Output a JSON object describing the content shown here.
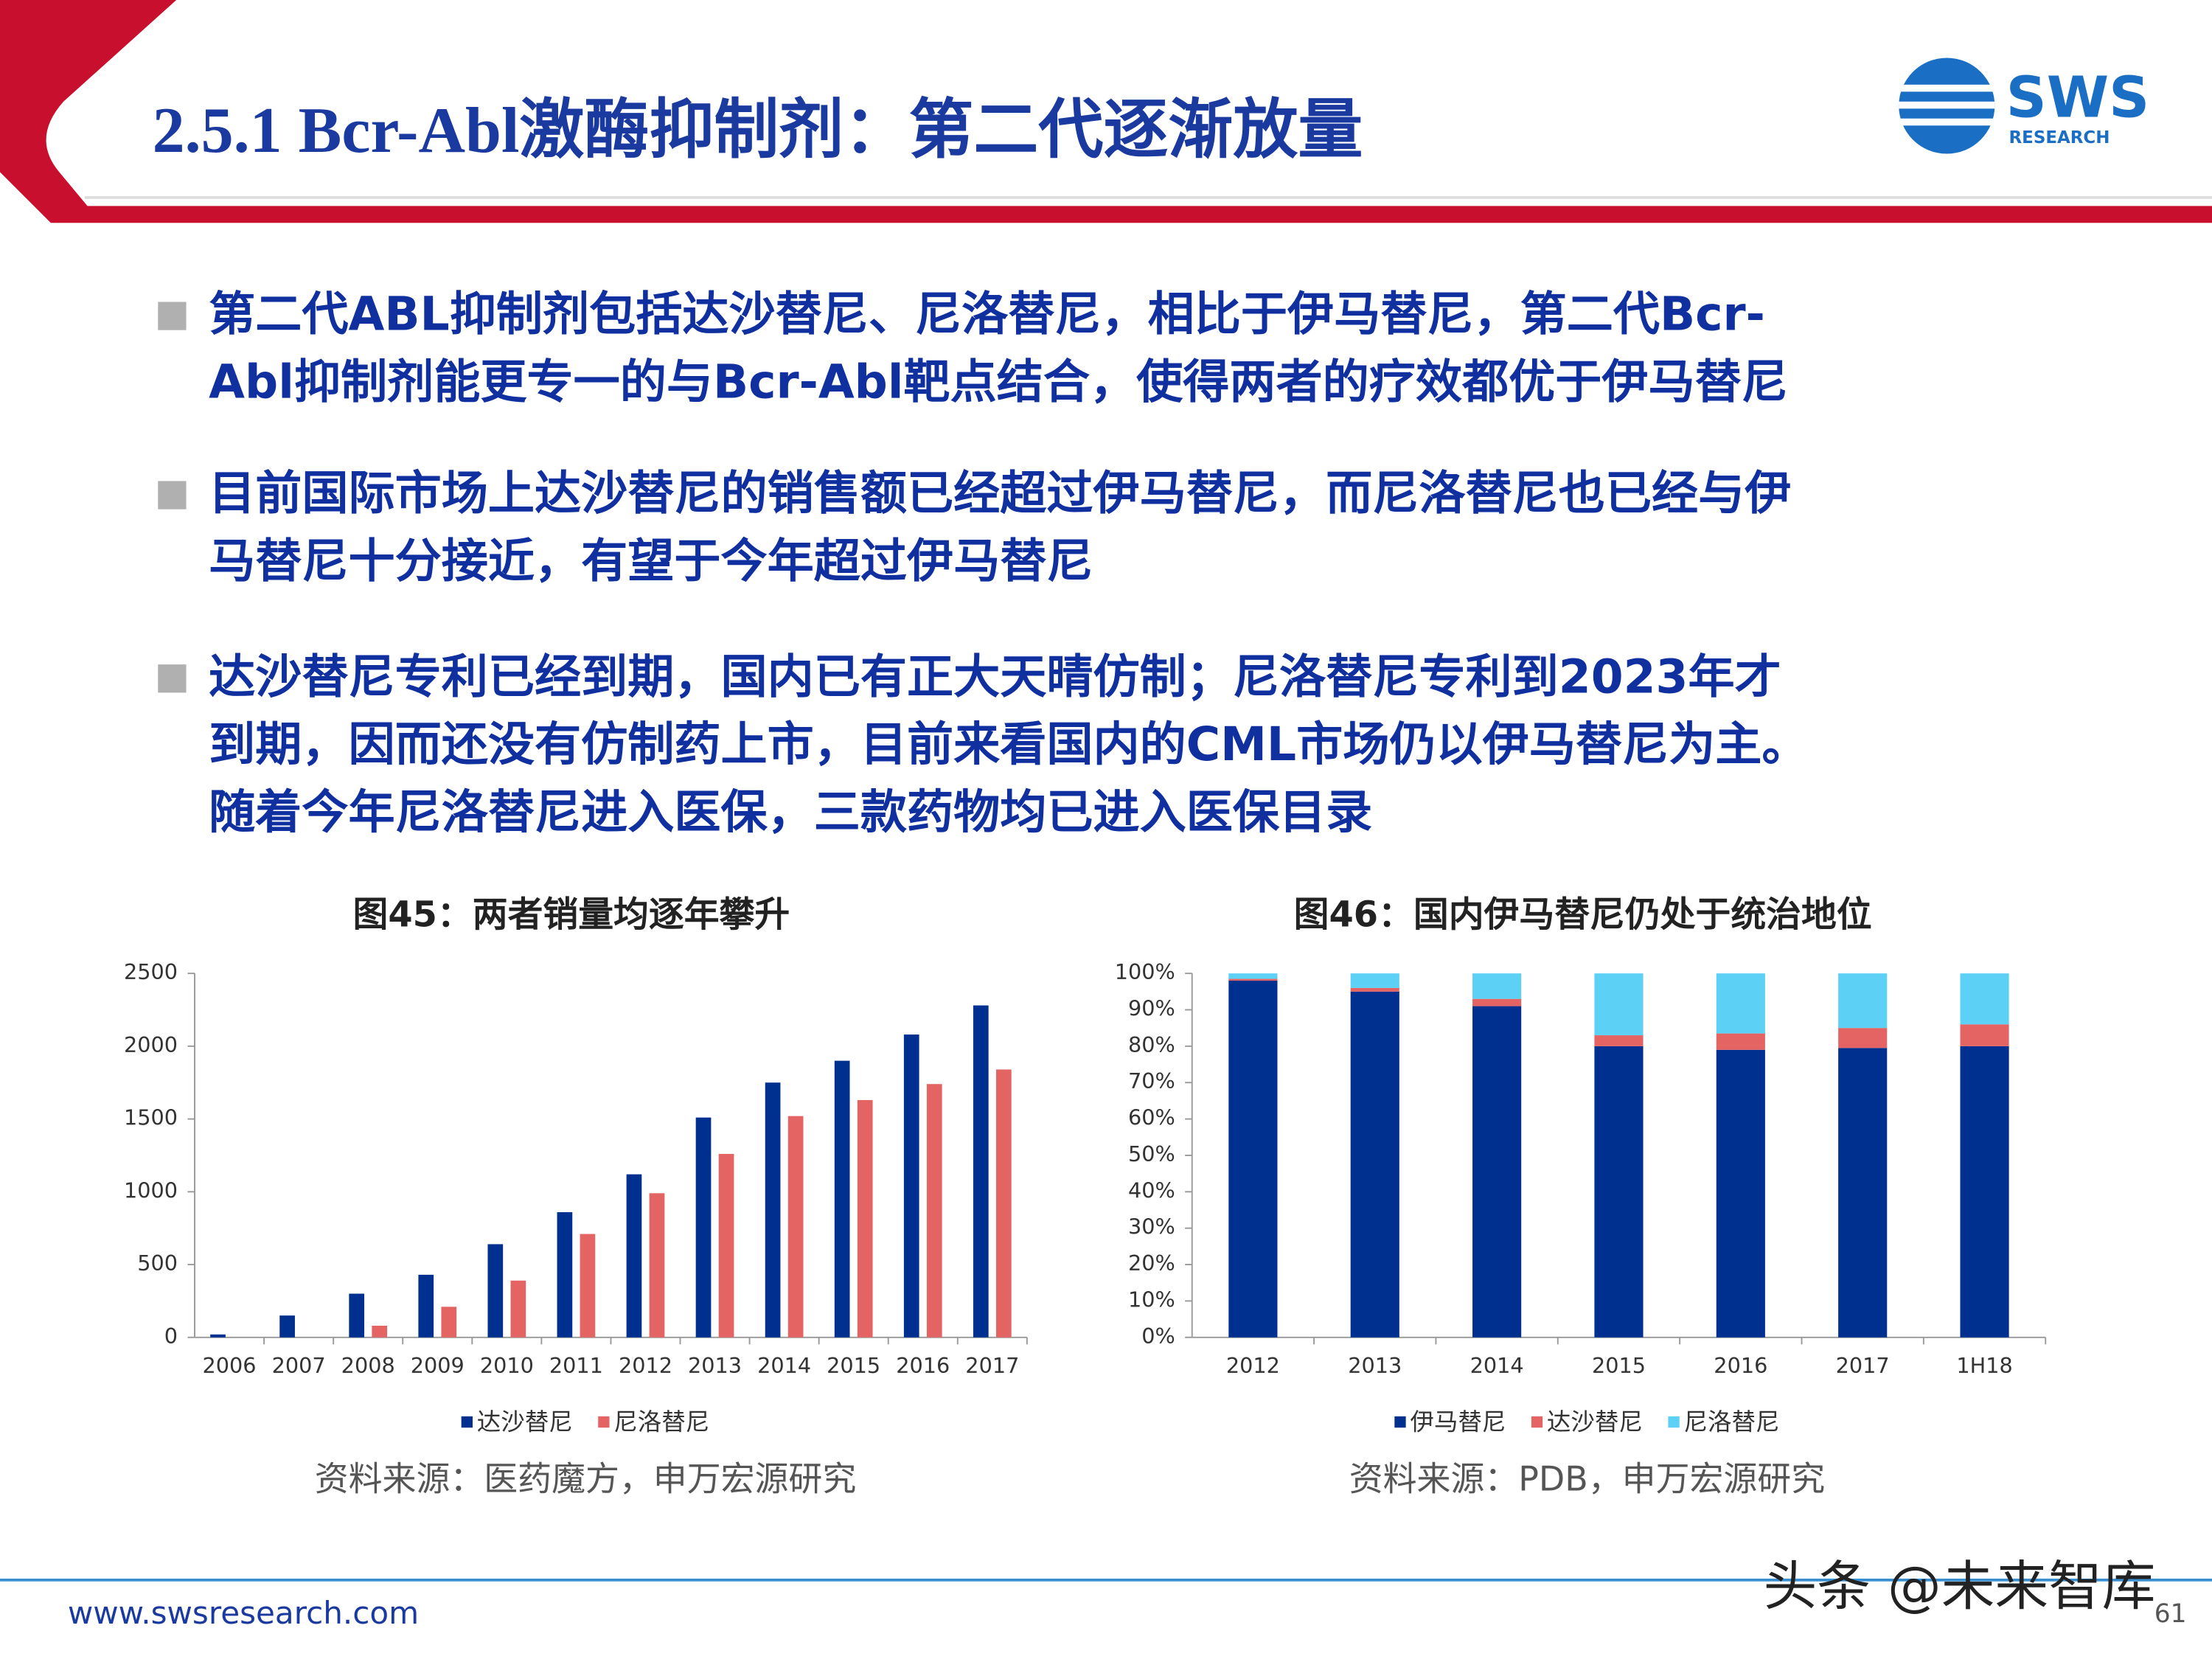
{
  "header": {
    "title": "2.5.1 Bcr-Abl激酶抑制剂：第二代逐渐放量",
    "logo": "SWS",
    "logo_sub": "RESEARCH"
  },
  "bullets": [
    [
      "第二代ABL抑制剂包括达沙替尼、尼洛替尼，相比于伊马替尼，第二代Bcr-",
      "Abl抑制剂能更专一的与Bcr-Abl靶点结合，使得两者的疗效都优于伊马替尼"
    ],
    [
      "目前国际市场上达沙替尼的销售额已经超过伊马替尼，而尼洛替尼也已经与伊",
      "马替尼十分接近，有望于今年超过伊马替尼"
    ],
    [
      "达沙替尼专利已经到期，国内已有正大天晴仿制；尼洛替尼专利到2023年才",
      "到期，因而还没有仿制药上市，目前来看国内的CML市场仍以伊马替尼为主。",
      "随着今年尼洛替尼进入医保，三款药物均已进入医保目录"
    ]
  ],
  "chart_data": [
    {
      "type": "bar",
      "title": "图45：两者销量均逐年攀升",
      "source": "资料来源：医药魔方，申万宏源研究",
      "categories": [
        "2006",
        "2007",
        "2008",
        "2009",
        "2010",
        "2011",
        "2012",
        "2013",
        "2014",
        "2015",
        "2016",
        "2017"
      ],
      "series": [
        {
          "name": "达沙替尼",
          "color": "#00308f",
          "values": [
            20,
            150,
            300,
            430,
            640,
            860,
            1120,
            1510,
            1750,
            1900,
            2080,
            2280
          ]
        },
        {
          "name": "尼洛替尼",
          "color": "#e46464",
          "values": [
            0,
            0,
            80,
            210,
            390,
            710,
            990,
            1260,
            1520,
            1630,
            1740,
            1840
          ]
        }
      ],
      "ylim": [
        0,
        2500
      ],
      "yticks": [
        0,
        500,
        1000,
        1500,
        2000,
        2500
      ],
      "stacked": false
    },
    {
      "type": "bar",
      "title": "图46：国内伊马替尼仍处于统治地位",
      "source": "资料来源：PDB，申万宏源研究",
      "categories": [
        "2012",
        "2013",
        "2014",
        "2015",
        "2016",
        "2017",
        "1H18"
      ],
      "series": [
        {
          "name": "伊马替尼",
          "color": "#00308f",
          "values": [
            98,
            95,
            91,
            80,
            79,
            79.5,
            80
          ]
        },
        {
          "name": "达沙替尼",
          "color": "#e46464",
          "values": [
            0.5,
            1,
            2,
            3,
            4.5,
            5.5,
            6
          ]
        },
        {
          "name": "尼洛替尼",
          "color": "#5dd0f5",
          "values": [
            1.5,
            4,
            7,
            17,
            16.5,
            15,
            14
          ]
        }
      ],
      "ylim": [
        0,
        100
      ],
      "yticks": [
        {
          "value": 0,
          "label": "0%"
        },
        {
          "value": 10,
          "label": "10%"
        },
        {
          "value": 20,
          "label": "20%"
        },
        {
          "value": 30,
          "label": "30%"
        },
        {
          "value": 40,
          "label": "40%"
        },
        {
          "value": 50,
          "label": "50%"
        },
        {
          "value": 60,
          "label": "60%"
        },
        {
          "value": 70,
          "label": "70%"
        },
        {
          "value": 80,
          "label": "80%"
        },
        {
          "value": 90,
          "label": "90%"
        },
        {
          "value": 100,
          "label": "100%"
        }
      ],
      "stacked": true
    }
  ],
  "footer": {
    "url": "www.swsresearch.com",
    "page": "61",
    "watermark": "头条 @未来智库"
  }
}
